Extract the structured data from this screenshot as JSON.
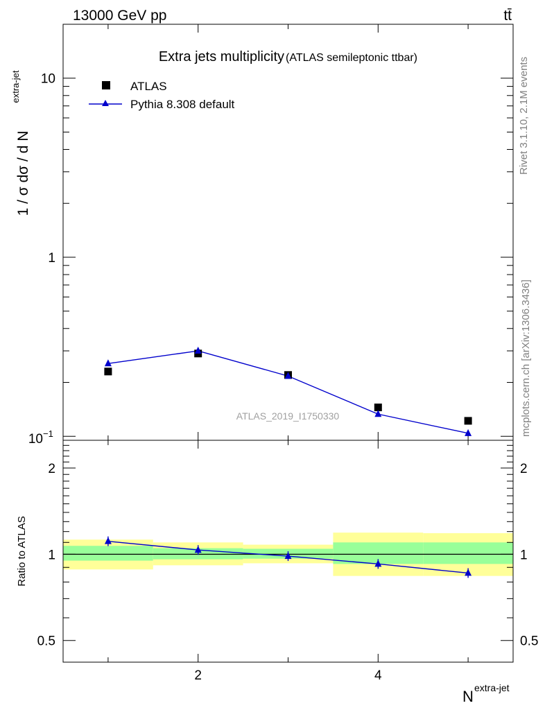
{
  "header": {
    "left": "13000 GeV pp",
    "right": "tt̄"
  },
  "side": {
    "rivet": "Rivet 3.1.10,  2.1M events",
    "mcplots": "mcplots.cern.ch [arXiv:1306.3436]"
  },
  "chart_data": [
    {
      "type": "scatter",
      "title": "Extra jets multiplicity",
      "subtitle": "(ATLAS semileptonic ttbar)",
      "ylabel_main": "1 / σ dσ / d N",
      "ylabel_sup": "extra-jet",
      "yscale": "log",
      "ylim": [
        0.095,
        20
      ],
      "xlim": [
        0.5,
        5.5
      ],
      "yticks": [
        {
          "v": 0.1,
          "base": "10",
          "exp": "−1"
        },
        {
          "v": 1,
          "label": "1"
        },
        {
          "v": 10,
          "label": "10"
        }
      ],
      "watermark": "ATLAS_2019_I1750330",
      "legend_position": "top-left",
      "series": [
        {
          "name": "ATLAS",
          "color": "#000000",
          "marker": "square",
          "x": [
            1,
            2,
            3,
            4,
            5
          ],
          "y": [
            0.23,
            0.29,
            0.22,
            0.145,
            0.122
          ]
        },
        {
          "name": "Pythia 8.308 default",
          "color": "#0000cc",
          "marker": "triangle",
          "x": [
            1,
            2,
            3,
            4,
            5
          ],
          "y": [
            0.255,
            0.3,
            0.217,
            0.133,
            0.104
          ]
        }
      ]
    },
    {
      "type": "line",
      "ylabel": "Ratio to ATLAS",
      "yscale": "log",
      "ylim": [
        0.42,
        2.5
      ],
      "xlim": [
        0.5,
        5.5
      ],
      "xlabel_base": "N",
      "xlabel_sup": "extra-jet",
      "xticks": [
        {
          "v": 2,
          "label": "2"
        },
        {
          "v": 4,
          "label": "4"
        }
      ],
      "yticks": [
        {
          "v": 0.5,
          "label": "0.5"
        },
        {
          "v": 1,
          "label": "1"
        },
        {
          "v": 2,
          "label": "2"
        }
      ],
      "reference": 1,
      "bands": [
        {
          "x0": 0.5,
          "x1": 1.5,
          "inner": [
            0.95,
            1.07
          ],
          "outer": [
            0.885,
            1.125
          ]
        },
        {
          "x0": 1.5,
          "x1": 2.5,
          "inner": [
            0.96,
            1.05
          ],
          "outer": [
            0.915,
            1.1
          ]
        },
        {
          "x0": 2.5,
          "x1": 3.5,
          "inner": [
            0.965,
            1.045
          ],
          "outer": [
            0.93,
            1.08
          ]
        },
        {
          "x0": 3.5,
          "x1": 4.5,
          "inner": [
            0.925,
            1.1
          ],
          "outer": [
            0.84,
            1.19
          ]
        },
        {
          "x0": 4.5,
          "x1": 5.5,
          "inner": [
            0.925,
            1.1
          ],
          "outer": [
            0.84,
            1.185
          ]
        }
      ],
      "series": [
        {
          "name": "Pythia 8.308 default",
          "color": "#0000cc",
          "x": [
            1,
            2,
            3,
            4,
            5
          ],
          "y": [
            1.11,
            1.035,
            0.985,
            0.925,
            0.86
          ]
        }
      ]
    }
  ]
}
